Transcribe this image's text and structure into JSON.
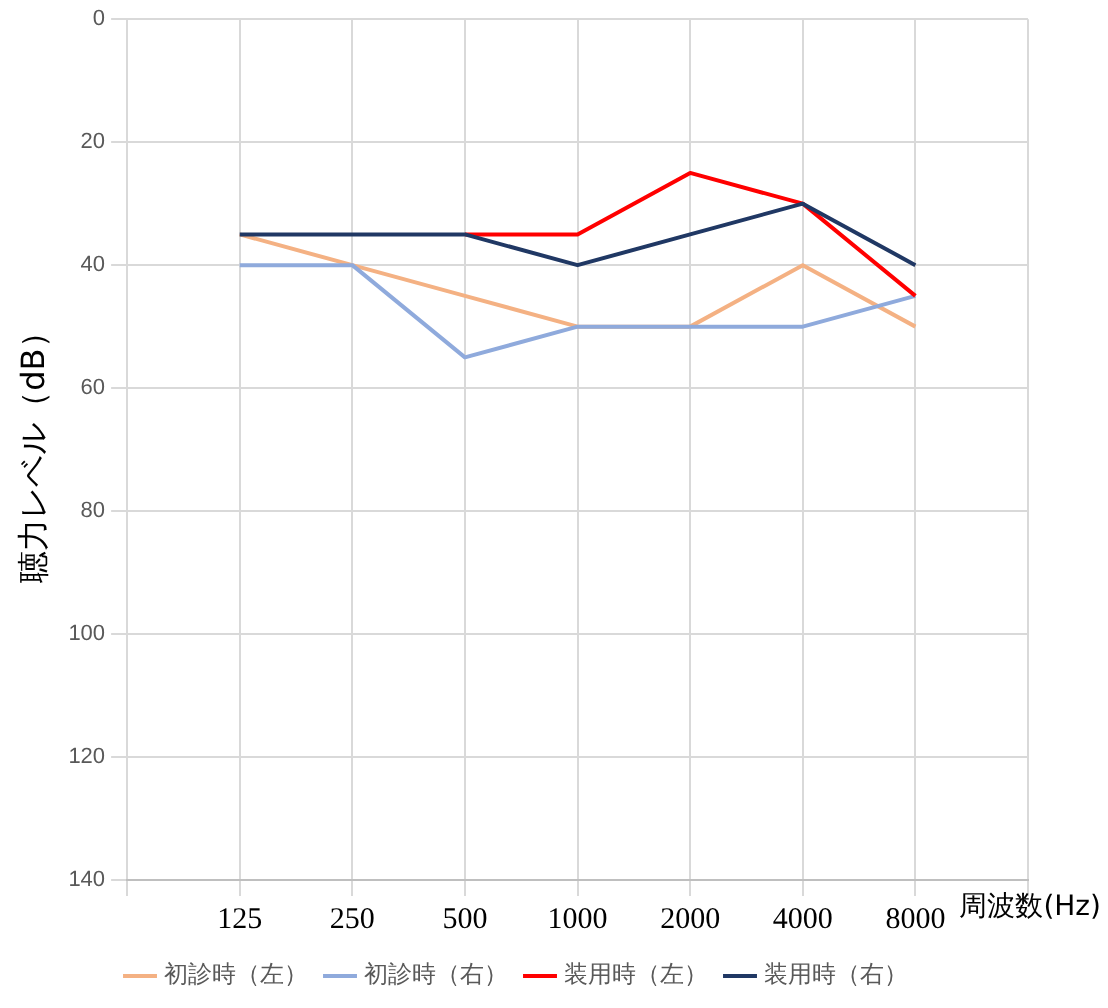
{
  "chart_data": {
    "type": "line",
    "ylabel": "聴力レベル（dB）",
    "xlabel": "周波数(Hz)",
    "categories": [
      null,
      "125",
      "250",
      "500",
      "1000",
      "2000",
      "4000",
      "8000",
      null
    ],
    "series": [
      {
        "name": "初診時（左）",
        "color": "#f4b183",
        "values": [
          null,
          35,
          40,
          45,
          50,
          50,
          40,
          50,
          null
        ]
      },
      {
        "name": "初診時（右）",
        "color": "#8faadc",
        "values": [
          null,
          40,
          40,
          55,
          50,
          50,
          50,
          45,
          null
        ]
      },
      {
        "name": "装用時（左）",
        "color": "#ff0000",
        "values": [
          null,
          null,
          null,
          35,
          35,
          25,
          30,
          45,
          null
        ]
      },
      {
        "name": "装用時（右）",
        "color": "#203864",
        "values": [
          null,
          35,
          35,
          35,
          40,
          35,
          30,
          40,
          null
        ]
      }
    ],
    "ylim": [
      140,
      0
    ],
    "yticks": [
      0,
      20,
      40,
      60,
      80,
      100,
      120,
      140
    ],
    "grid": true,
    "legend": "bottom",
    "marker": "none",
    "line_style": "solid"
  }
}
